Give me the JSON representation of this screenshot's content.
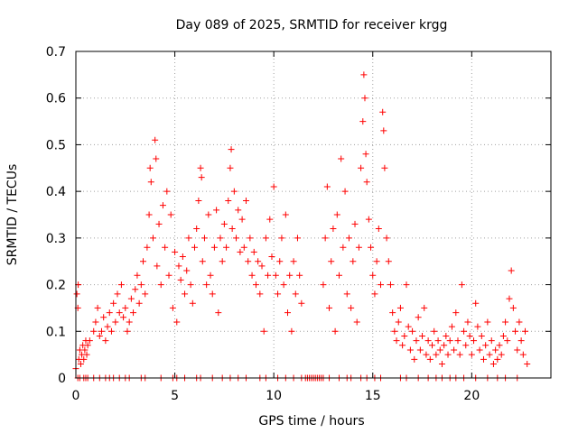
{
  "chart_data": {
    "type": "scatter",
    "title": "Day 089 of 2025, SRMTID for receiver krgg",
    "xlabel": "GPS time / hours",
    "ylabel": "SRMTID / TECUs",
    "xlim": [
      0,
      24
    ],
    "ylim": [
      0,
      0.7
    ],
    "xticks": [
      0,
      5,
      10,
      15,
      20
    ],
    "yticks": [
      0,
      0.1,
      0.2,
      0.3,
      0.4,
      0.5,
      0.6,
      0.7
    ],
    "xtick_labels": [
      "0",
      "5",
      "10",
      "15",
      "20"
    ],
    "ytick_labels": [
      "0",
      "0.1",
      "0.2",
      "0.3",
      "0.4",
      "0.5",
      "0.6",
      "0.7"
    ],
    "grid": true,
    "marker": "+",
    "color": "#ff0000",
    "series": [
      {
        "name": "SRMTID",
        "points": [
          [
            0.0,
            0.02
          ],
          [
            0.05,
            0.18
          ],
          [
            0.1,
            0.15
          ],
          [
            0.12,
            0.2
          ],
          [
            0.15,
            0.04
          ],
          [
            0.2,
            0.06
          ],
          [
            0.25,
            0.03
          ],
          [
            0.3,
            0.05
          ],
          [
            0.35,
            0.07
          ],
          [
            0.4,
            0.04
          ],
          [
            0.45,
            0.06
          ],
          [
            0.5,
            0.08
          ],
          [
            0.55,
            0.05
          ],
          [
            0.6,
            0.07
          ],
          [
            0.7,
            0.08
          ],
          [
            0.9,
            0.1
          ],
          [
            1.0,
            0.12
          ],
          [
            1.1,
            0.15
          ],
          [
            1.2,
            0.09
          ],
          [
            1.3,
            0.1
          ],
          [
            1.4,
            0.13
          ],
          [
            1.5,
            0.08
          ],
          [
            1.6,
            0.11
          ],
          [
            1.7,
            0.14
          ],
          [
            1.8,
            0.1
          ],
          [
            1.9,
            0.16
          ],
          [
            2.0,
            0.12
          ],
          [
            2.1,
            0.18
          ],
          [
            2.2,
            0.14
          ],
          [
            2.3,
            0.2
          ],
          [
            2.4,
            0.13
          ],
          [
            2.5,
            0.15
          ],
          [
            2.6,
            0.1
          ],
          [
            2.7,
            0.12
          ],
          [
            2.8,
            0.17
          ],
          [
            2.9,
            0.14
          ],
          [
            3.0,
            0.19
          ],
          [
            3.1,
            0.22
          ],
          [
            3.2,
            0.16
          ],
          [
            3.3,
            0.2
          ],
          [
            3.4,
            0.25
          ],
          [
            3.5,
            0.18
          ],
          [
            3.6,
            0.28
          ],
          [
            3.7,
            0.35
          ],
          [
            3.75,
            0.45
          ],
          [
            3.8,
            0.42
          ],
          [
            3.9,
            0.3
          ],
          [
            4.0,
            0.51
          ],
          [
            4.05,
            0.47
          ],
          [
            4.1,
            0.24
          ],
          [
            4.2,
            0.33
          ],
          [
            4.3,
            0.2
          ],
          [
            4.4,
            0.37
          ],
          [
            4.5,
            0.28
          ],
          [
            4.6,
            0.4
          ],
          [
            4.7,
            0.22
          ],
          [
            4.8,
            0.35
          ],
          [
            4.9,
            0.15
          ],
          [
            5.0,
            0.27
          ],
          [
            5.1,
            0.12
          ],
          [
            5.2,
            0.24
          ],
          [
            5.3,
            0.21
          ],
          [
            5.4,
            0.26
          ],
          [
            5.5,
            0.18
          ],
          [
            5.6,
            0.23
          ],
          [
            5.7,
            0.3
          ],
          [
            5.8,
            0.2
          ],
          [
            5.9,
            0.16
          ],
          [
            6.0,
            0.28
          ],
          [
            6.1,
            0.32
          ],
          [
            6.2,
            0.38
          ],
          [
            6.3,
            0.45
          ],
          [
            6.35,
            0.43
          ],
          [
            6.4,
            0.25
          ],
          [
            6.5,
            0.3
          ],
          [
            6.6,
            0.2
          ],
          [
            6.7,
            0.35
          ],
          [
            6.8,
            0.22
          ],
          [
            6.9,
            0.18
          ],
          [
            7.0,
            0.28
          ],
          [
            7.1,
            0.36
          ],
          [
            7.2,
            0.14
          ],
          [
            7.3,
            0.3
          ],
          [
            7.4,
            0.25
          ],
          [
            7.5,
            0.33
          ],
          [
            7.6,
            0.28
          ],
          [
            7.7,
            0.38
          ],
          [
            7.8,
            0.45
          ],
          [
            7.85,
            0.49
          ],
          [
            7.9,
            0.32
          ],
          [
            8.0,
            0.4
          ],
          [
            8.1,
            0.3
          ],
          [
            8.2,
            0.36
          ],
          [
            8.3,
            0.27
          ],
          [
            8.4,
            0.34
          ],
          [
            8.5,
            0.28
          ],
          [
            8.6,
            0.38
          ],
          [
            8.7,
            0.25
          ],
          [
            8.8,
            0.3
          ],
          [
            8.9,
            0.22
          ],
          [
            9.0,
            0.27
          ],
          [
            9.1,
            0.2
          ],
          [
            9.2,
            0.25
          ],
          [
            9.3,
            0.18
          ],
          [
            9.4,
            0.24
          ],
          [
            9.5,
            0.1
          ],
          [
            9.6,
            0.3
          ],
          [
            9.7,
            0.22
          ],
          [
            9.8,
            0.34
          ],
          [
            9.9,
            0.26
          ],
          [
            10.0,
            0.41
          ],
          [
            10.1,
            0.22
          ],
          [
            10.2,
            0.18
          ],
          [
            10.3,
            0.25
          ],
          [
            10.4,
            0.3
          ],
          [
            10.5,
            0.2
          ],
          [
            10.6,
            0.35
          ],
          [
            10.7,
            0.14
          ],
          [
            10.8,
            0.22
          ],
          [
            10.9,
            0.1
          ],
          [
            11.0,
            0.25
          ],
          [
            11.1,
            0.18
          ],
          [
            11.2,
            0.3
          ],
          [
            11.3,
            0.22
          ],
          [
            11.4,
            0.16
          ],
          [
            12.5,
            0.2
          ],
          [
            12.6,
            0.3
          ],
          [
            12.7,
            0.41
          ],
          [
            12.8,
            0.15
          ],
          [
            12.9,
            0.25
          ],
          [
            13.0,
            0.32
          ],
          [
            13.1,
            0.1
          ],
          [
            13.2,
            0.35
          ],
          [
            13.3,
            0.22
          ],
          [
            13.4,
            0.47
          ],
          [
            13.5,
            0.28
          ],
          [
            13.6,
            0.4
          ],
          [
            13.7,
            0.18
          ],
          [
            13.8,
            0.3
          ],
          [
            13.9,
            0.15
          ],
          [
            14.0,
            0.25
          ],
          [
            14.1,
            0.33
          ],
          [
            14.2,
            0.12
          ],
          [
            14.3,
            0.28
          ],
          [
            14.4,
            0.45
          ],
          [
            14.5,
            0.55
          ],
          [
            14.55,
            0.65
          ],
          [
            14.6,
            0.6
          ],
          [
            14.65,
            0.48
          ],
          [
            14.7,
            0.42
          ],
          [
            14.8,
            0.34
          ],
          [
            14.9,
            0.28
          ],
          [
            15.0,
            0.22
          ],
          [
            15.1,
            0.18
          ],
          [
            15.2,
            0.25
          ],
          [
            15.3,
            0.32
          ],
          [
            15.4,
            0.2
          ],
          [
            15.5,
            0.57
          ],
          [
            15.55,
            0.53
          ],
          [
            15.6,
            0.45
          ],
          [
            15.7,
            0.3
          ],
          [
            15.8,
            0.25
          ],
          [
            15.9,
            0.2
          ],
          [
            16.0,
            0.14
          ],
          [
            16.1,
            0.1
          ],
          [
            16.2,
            0.08
          ],
          [
            16.3,
            0.12
          ],
          [
            16.4,
            0.15
          ],
          [
            16.5,
            0.07
          ],
          [
            16.6,
            0.09
          ],
          [
            16.7,
            0.2
          ],
          [
            16.8,
            0.11
          ],
          [
            16.9,
            0.06
          ],
          [
            17.0,
            0.1
          ],
          [
            17.1,
            0.04
          ],
          [
            17.2,
            0.08
          ],
          [
            17.3,
            0.13
          ],
          [
            17.4,
            0.06
          ],
          [
            17.5,
            0.09
          ],
          [
            17.6,
            0.15
          ],
          [
            17.7,
            0.05
          ],
          [
            17.8,
            0.08
          ],
          [
            17.9,
            0.04
          ],
          [
            18.0,
            0.07
          ],
          [
            18.1,
            0.1
          ],
          [
            18.2,
            0.05
          ],
          [
            18.3,
            0.08
          ],
          [
            18.4,
            0.06
          ],
          [
            18.5,
            0.03
          ],
          [
            18.6,
            0.07
          ],
          [
            18.7,
            0.09
          ],
          [
            18.8,
            0.05
          ],
          [
            18.9,
            0.08
          ],
          [
            19.0,
            0.11
          ],
          [
            19.1,
            0.06
          ],
          [
            19.2,
            0.14
          ],
          [
            19.3,
            0.08
          ],
          [
            19.4,
            0.05
          ],
          [
            19.5,
            0.2
          ],
          [
            19.6,
            0.1
          ],
          [
            19.7,
            0.07
          ],
          [
            19.8,
            0.12
          ],
          [
            19.9,
            0.09
          ],
          [
            20.0,
            0.05
          ],
          [
            20.1,
            0.08
          ],
          [
            20.2,
            0.16
          ],
          [
            20.3,
            0.11
          ],
          [
            20.4,
            0.06
          ],
          [
            20.5,
            0.09
          ],
          [
            20.6,
            0.04
          ],
          [
            20.7,
            0.07
          ],
          [
            20.8,
            0.12
          ],
          [
            20.9,
            0.05
          ],
          [
            21.0,
            0.08
          ],
          [
            21.1,
            0.03
          ],
          [
            21.2,
            0.06
          ],
          [
            21.3,
            0.04
          ],
          [
            21.4,
            0.07
          ],
          [
            21.5,
            0.05
          ],
          [
            21.6,
            0.09
          ],
          [
            21.7,
            0.12
          ],
          [
            21.8,
            0.08
          ],
          [
            21.9,
            0.17
          ],
          [
            22.0,
            0.23
          ],
          [
            22.1,
            0.15
          ],
          [
            22.2,
            0.1
          ],
          [
            22.3,
            0.06
          ],
          [
            22.4,
            0.12
          ],
          [
            22.5,
            0.08
          ],
          [
            22.6,
            0.05
          ],
          [
            22.7,
            0.1
          ],
          [
            22.8,
            0.03
          ]
        ],
        "zero_points": [
          0.1,
          0.2,
          0.4,
          0.5,
          0.6,
          0.9,
          1.2,
          1.5,
          1.7,
          1.9,
          2.2,
          2.5,
          2.7,
          3.3,
          3.5,
          4.3,
          4.9,
          5.1,
          5.5,
          6.1,
          6.3,
          6.9,
          7.4,
          7.8,
          8.2,
          8.6,
          9.3,
          9.6,
          10.2,
          10.6,
          11.0,
          11.4,
          11.6,
          11.7,
          11.8,
          11.9,
          12.0,
          12.1,
          12.2,
          12.3,
          12.4,
          12.5,
          12.8,
          13.3,
          13.7,
          13.9,
          14.4,
          14.7,
          15.1,
          15.4,
          16.4,
          16.7,
          17.3,
          17.8,
          18.2,
          18.5,
          18.9,
          19.2,
          19.6,
          20.2,
          20.8,
          21.3,
          21.7,
          22.3
        ]
      }
    ]
  }
}
